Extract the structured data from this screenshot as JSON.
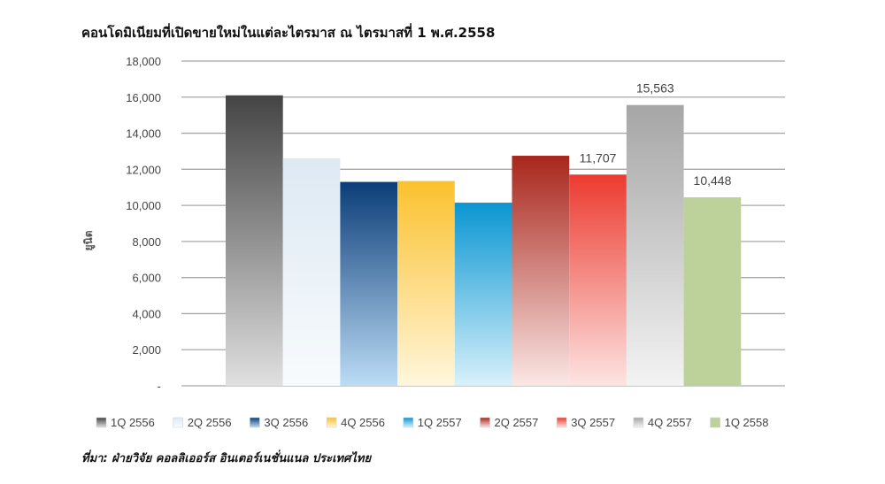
{
  "chart_data": {
    "type": "bar",
    "title": "คอนโดมิเนียมที่เปิดขายใหม่ในแต่ละไตรมาส ณ ไตรมาสที่ 1 พ.ศ.2558",
    "ylabel": "ยูนิต",
    "xlabel": "",
    "ylim": [
      0,
      18000
    ],
    "yticks": [
      "-",
      "2,000",
      "4,000",
      "6,000",
      "8,000",
      "10,000",
      "12,000",
      "14,000",
      "16,000",
      "18,000"
    ],
    "grid": true,
    "legend_position": "bottom",
    "categories": [
      "1Q 2556",
      "2Q 2556",
      "3Q 2556",
      "4Q 2556",
      "1Q 2557",
      "2Q 2557",
      "3Q 2557",
      "4Q 2557",
      "1Q 2558"
    ],
    "values": [
      16100,
      12600,
      11300,
      11350,
      10150,
      12750,
      11707,
      15563,
      10448
    ],
    "data_labels": [
      "",
      "",
      "",
      "",
      "",
      "",
      "11,707",
      "15,563",
      "10,448"
    ],
    "colors": [
      {
        "top": "#444444",
        "bottom": "#e0e0e0"
      },
      {
        "top": "#dde9f3",
        "bottom": "#f8fbfd"
      },
      {
        "top": "#0b3d78",
        "bottom": "#bcdcf6"
      },
      {
        "top": "#fbc12e",
        "bottom": "#fff6dc"
      },
      {
        "top": "#0a96d2",
        "bottom": "#d8f1fb"
      },
      {
        "top": "#a8261c",
        "bottom": "#fbe7e5"
      },
      {
        "top": "#ec3a2f",
        "bottom": "#fde4e2"
      },
      {
        "top": "#a6a6a6",
        "bottom": "#f3f3f3"
      },
      {
        "top": "#bdd29a",
        "bottom": "#bdd29a"
      }
    ]
  },
  "source": "ที่มา: ฝ่ายวิจัย คอลลิเออร์ส อินเตอร์เนชั่นแนล ประเทศไทย"
}
